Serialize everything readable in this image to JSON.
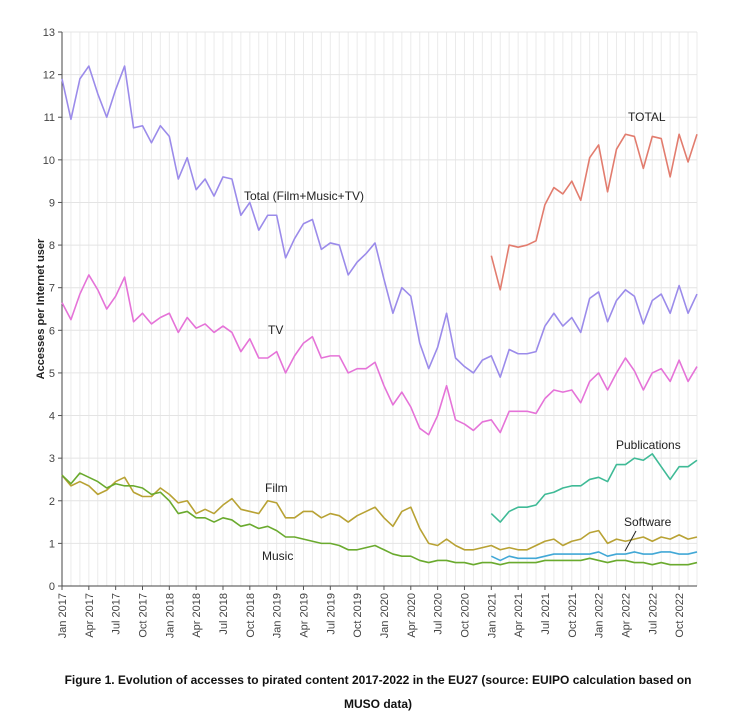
{
  "chart_data": {
    "type": "line",
    "title": "",
    "xlabel": "",
    "ylabel": "Accesses per Internet user",
    "ylim": [
      0,
      13
    ],
    "yticks": [
      0,
      1,
      2,
      3,
      4,
      5,
      6,
      7,
      8,
      9,
      10,
      11,
      12,
      13
    ],
    "xtick_labels": [
      "Jan 2017",
      "Apr 2017",
      "Jul 2017",
      "Oct 2017",
      "Jan 2018",
      "Apr 2018",
      "Jul 2018",
      "Oct 2018",
      "Jan 2019",
      "Apr 2019",
      "Jul 2019",
      "Oct 2019",
      "Jan 2020",
      "Apr 2020",
      "Jul 2020",
      "Oct 2020",
      "Jan 2021",
      "Apr 2021",
      "Jul 2021",
      "Oct 2021",
      "Jan 2022",
      "Apr 2022",
      "Jul 2022",
      "Oct 2022"
    ],
    "x_start": "Jan 2017",
    "x_end": "Dec 2022",
    "grid": true,
    "series": [
      {
        "name": "Total (Film+Music+TV)",
        "color": "#9b8bea",
        "start": "Jan 2017",
        "values": [
          11.9,
          10.95,
          11.9,
          12.2,
          11.55,
          11.0,
          11.65,
          12.2,
          10.75,
          10.8,
          10.4,
          10.8,
          10.55,
          9.55,
          10.05,
          9.3,
          9.55,
          9.15,
          9.6,
          9.55,
          8.7,
          9.0,
          8.35,
          8.7,
          8.7,
          7.7,
          8.15,
          8.5,
          8.6,
          7.9,
          8.05,
          8.0,
          7.3,
          7.6,
          7.8,
          8.05,
          7.2,
          6.4,
          7.0,
          6.8,
          5.7,
          5.1,
          5.6,
          6.4,
          5.35,
          5.15,
          5.0,
          5.3,
          5.4,
          4.9,
          5.55,
          5.45,
          5.45,
          5.5,
          6.1,
          6.4,
          6.1,
          6.3,
          5.95,
          6.75,
          6.9,
          6.2,
          6.7,
          6.95,
          6.8,
          6.15,
          6.7,
          6.85,
          6.4,
          7.05,
          6.4,
          6.85
        ]
      },
      {
        "name": "TV",
        "color": "#e573d8",
        "start": "Jan 2017",
        "values": [
          6.65,
          6.25,
          6.85,
          7.3,
          6.95,
          6.5,
          6.8,
          7.25,
          6.2,
          6.4,
          6.15,
          6.3,
          6.4,
          5.95,
          6.3,
          6.05,
          6.15,
          5.95,
          6.1,
          5.95,
          5.5,
          5.8,
          5.35,
          5.35,
          5.5,
          5.0,
          5.4,
          5.7,
          5.85,
          5.35,
          5.4,
          5.4,
          5.0,
          5.1,
          5.1,
          5.25,
          4.7,
          4.25,
          4.55,
          4.2,
          3.7,
          3.55,
          4.0,
          4.7,
          3.9,
          3.8,
          3.65,
          3.85,
          3.9,
          3.6,
          4.1,
          4.1,
          4.1,
          4.05,
          4.4,
          4.6,
          4.55,
          4.6,
          4.3,
          4.8,
          5.0,
          4.6,
          5.0,
          5.35,
          5.05,
          4.6,
          5.0,
          5.1,
          4.8,
          5.3,
          4.8,
          5.15
        ]
      },
      {
        "name": "Film",
        "color": "#b8a234",
        "start": "Jan 2017",
        "values": [
          2.6,
          2.35,
          2.45,
          2.35,
          2.15,
          2.25,
          2.45,
          2.55,
          2.2,
          2.1,
          2.1,
          2.3,
          2.15,
          1.95,
          2.0,
          1.7,
          1.8,
          1.7,
          1.9,
          2.05,
          1.8,
          1.75,
          1.7,
          2.0,
          1.95,
          1.6,
          1.6,
          1.75,
          1.75,
          1.6,
          1.7,
          1.65,
          1.5,
          1.65,
          1.75,
          1.85,
          1.6,
          1.4,
          1.75,
          1.85,
          1.35,
          1.0,
          0.95,
          1.1,
          0.95,
          0.85,
          0.85,
          0.9,
          0.95,
          0.85,
          0.9,
          0.85,
          0.85,
          0.95,
          1.05,
          1.1,
          0.95,
          1.05,
          1.1,
          1.25,
          1.3,
          1.0,
          1.1,
          1.05,
          1.1,
          1.15,
          1.05,
          1.15,
          1.1,
          1.2,
          1.1,
          1.15
        ]
      },
      {
        "name": "Music",
        "color": "#6aaa2e",
        "start": "Jan 2017",
        "values": [
          2.6,
          2.4,
          2.65,
          2.55,
          2.45,
          2.3,
          2.4,
          2.35,
          2.35,
          2.3,
          2.15,
          2.2,
          2.0,
          1.7,
          1.75,
          1.6,
          1.6,
          1.5,
          1.6,
          1.55,
          1.4,
          1.45,
          1.35,
          1.4,
          1.3,
          1.15,
          1.15,
          1.1,
          1.05,
          1.0,
          1.0,
          0.95,
          0.85,
          0.85,
          0.9,
          0.95,
          0.85,
          0.75,
          0.7,
          0.7,
          0.6,
          0.55,
          0.6,
          0.6,
          0.55,
          0.55,
          0.5,
          0.55,
          0.55,
          0.5,
          0.55,
          0.55,
          0.55,
          0.55,
          0.6,
          0.6,
          0.6,
          0.6,
          0.6,
          0.65,
          0.6,
          0.55,
          0.6,
          0.6,
          0.55,
          0.55,
          0.5,
          0.55,
          0.5,
          0.5,
          0.5,
          0.55
        ]
      },
      {
        "name": "TOTAL",
        "color": "#e27c6e",
        "start": "Jan 2021",
        "values": [
          7.75,
          6.95,
          8.0,
          7.95,
          8.0,
          8.1,
          8.95,
          9.35,
          9.2,
          9.5,
          9.05,
          10.05,
          10.35,
          9.25,
          10.25,
          10.6,
          10.55,
          9.8,
          10.55,
          10.5,
          9.6,
          10.6,
          9.95,
          10.6
        ]
      },
      {
        "name": "Publications",
        "color": "#3fba96",
        "start": "Jan 2021",
        "values": [
          1.7,
          1.5,
          1.75,
          1.85,
          1.85,
          1.9,
          2.15,
          2.2,
          2.3,
          2.35,
          2.35,
          2.5,
          2.55,
          2.45,
          2.85,
          2.85,
          3.0,
          2.95,
          3.1,
          2.8,
          2.5,
          2.8,
          2.8,
          2.95
        ]
      },
      {
        "name": "Software",
        "color": "#42a8d6",
        "start": "Jan 2021",
        "values": [
          0.7,
          0.6,
          0.7,
          0.65,
          0.65,
          0.65,
          0.7,
          0.75,
          0.75,
          0.75,
          0.75,
          0.75,
          0.8,
          0.7,
          0.75,
          0.75,
          0.8,
          0.75,
          0.75,
          0.8,
          0.8,
          0.75,
          0.75,
          0.8
        ]
      }
    ]
  },
  "caption_line1": "Figure 1. Evolution of accesses to pirated content 2017-2022 in the EU27 (source: EUIPO calculation based on",
  "caption_line2": "MUSO data)"
}
